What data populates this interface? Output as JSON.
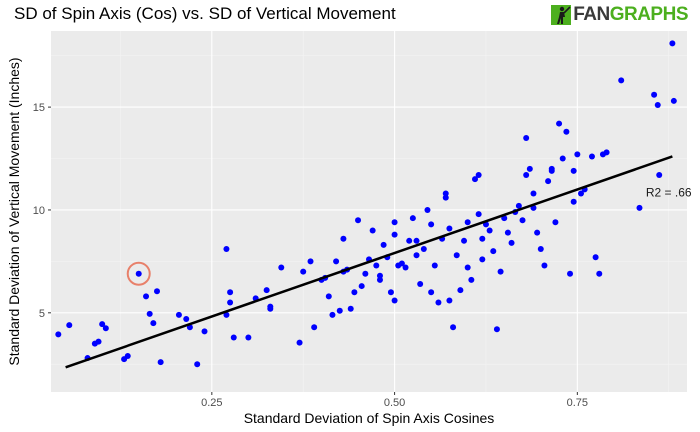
{
  "chart_data": {
    "type": "scatter",
    "title": "SD of Spin Axis (Cos) vs. SD of Vertical Movement",
    "xlabel": "Standard Deviation of Spin Axis Cosines",
    "ylabel": "Standard Deviation of Vertical Movement (Inches)",
    "xlim": [
      0.03,
      0.9
    ],
    "ylim": [
      1.15,
      18.7
    ],
    "x_ticks": [
      0.25,
      0.5,
      0.75
    ],
    "x_tick_labels": [
      "0.25",
      "0.50",
      "0.75"
    ],
    "y_ticks": [
      5,
      10,
      15
    ],
    "y_tick_labels": [
      "5",
      "10",
      "15"
    ],
    "grid": true,
    "point_color": "#0000ff",
    "line_color": "#000000",
    "highlight_color": "#e8806a",
    "fit_line": {
      "x": [
        0.05,
        0.88
      ],
      "y": [
        2.35,
        12.6
      ]
    },
    "annotation": {
      "text": "R2 = .66",
      "x": 0.875,
      "y": 10.85
    },
    "highlight": {
      "x": 0.15,
      "y": 6.9
    },
    "points": [
      {
        "x": 0.04,
        "y": 3.95
      },
      {
        "x": 0.055,
        "y": 4.4
      },
      {
        "x": 0.08,
        "y": 2.8
      },
      {
        "x": 0.09,
        "y": 3.5
      },
      {
        "x": 0.095,
        "y": 3.6
      },
      {
        "x": 0.1,
        "y": 4.45
      },
      {
        "x": 0.105,
        "y": 4.25
      },
      {
        "x": 0.13,
        "y": 2.75
      },
      {
        "x": 0.135,
        "y": 2.9
      },
      {
        "x": 0.15,
        "y": 6.9
      },
      {
        "x": 0.16,
        "y": 5.8
      },
      {
        "x": 0.165,
        "y": 4.95
      },
      {
        "x": 0.17,
        "y": 4.5
      },
      {
        "x": 0.175,
        "y": 6.05
      },
      {
        "x": 0.18,
        "y": 2.6
      },
      {
        "x": 0.205,
        "y": 4.9
      },
      {
        "x": 0.215,
        "y": 4.7
      },
      {
        "x": 0.22,
        "y": 4.3
      },
      {
        "x": 0.23,
        "y": 2.5
      },
      {
        "x": 0.24,
        "y": 4.1
      },
      {
        "x": 0.27,
        "y": 8.1
      },
      {
        "x": 0.275,
        "y": 5.5
      },
      {
        "x": 0.275,
        "y": 6.0
      },
      {
        "x": 0.27,
        "y": 4.9
      },
      {
        "x": 0.28,
        "y": 3.8
      },
      {
        "x": 0.3,
        "y": 3.8
      },
      {
        "x": 0.31,
        "y": 5.7
      },
      {
        "x": 0.325,
        "y": 6.1
      },
      {
        "x": 0.33,
        "y": 5.3
      },
      {
        "x": 0.33,
        "y": 5.2
      },
      {
        "x": 0.345,
        "y": 7.2
      },
      {
        "x": 0.37,
        "y": 3.55
      },
      {
        "x": 0.375,
        "y": 7.0
      },
      {
        "x": 0.385,
        "y": 7.5
      },
      {
        "x": 0.39,
        "y": 4.3
      },
      {
        "x": 0.4,
        "y": 6.6
      },
      {
        "x": 0.405,
        "y": 6.7
      },
      {
        "x": 0.41,
        "y": 5.8
      },
      {
        "x": 0.415,
        "y": 4.9
      },
      {
        "x": 0.42,
        "y": 7.5
      },
      {
        "x": 0.425,
        "y": 5.1
      },
      {
        "x": 0.43,
        "y": 8.6
      },
      {
        "x": 0.435,
        "y": 7.1
      },
      {
        "x": 0.44,
        "y": 5.2
      },
      {
        "x": 0.445,
        "y": 6.0
      },
      {
        "x": 0.45,
        "y": 9.5
      },
      {
        "x": 0.455,
        "y": 6.3
      },
      {
        "x": 0.46,
        "y": 6.9
      },
      {
        "x": 0.465,
        "y": 7.6
      },
      {
        "x": 0.47,
        "y": 9.0
      },
      {
        "x": 0.475,
        "y": 7.3
      },
      {
        "x": 0.48,
        "y": 6.6
      },
      {
        "x": 0.485,
        "y": 8.3
      },
      {
        "x": 0.49,
        "y": 7.7
      },
      {
        "x": 0.495,
        "y": 6.0
      },
      {
        "x": 0.5,
        "y": 9.4
      },
      {
        "x": 0.5,
        "y": 5.6
      },
      {
        "x": 0.505,
        "y": 7.3
      },
      {
        "x": 0.51,
        "y": 7.4
      },
      {
        "x": 0.515,
        "y": 7.2
      },
      {
        "x": 0.52,
        "y": 8.5
      },
      {
        "x": 0.525,
        "y": 9.6
      },
      {
        "x": 0.53,
        "y": 7.8
      },
      {
        "x": 0.535,
        "y": 6.4
      },
      {
        "x": 0.54,
        "y": 8.1
      },
      {
        "x": 0.545,
        "y": 10.0
      },
      {
        "x": 0.55,
        "y": 6.0
      },
      {
        "x": 0.555,
        "y": 7.3
      },
      {
        "x": 0.56,
        "y": 5.5
      },
      {
        "x": 0.565,
        "y": 8.6
      },
      {
        "x": 0.57,
        "y": 10.8
      },
      {
        "x": 0.575,
        "y": 9.1
      },
      {
        "x": 0.58,
        "y": 4.3
      },
      {
        "x": 0.585,
        "y": 7.8
      },
      {
        "x": 0.59,
        "y": 6.1
      },
      {
        "x": 0.595,
        "y": 8.5
      },
      {
        "x": 0.6,
        "y": 7.2
      },
      {
        "x": 0.605,
        "y": 6.6
      },
      {
        "x": 0.61,
        "y": 11.5
      },
      {
        "x": 0.615,
        "y": 9.8
      },
      {
        "x": 0.62,
        "y": 8.6
      },
      {
        "x": 0.625,
        "y": 9.3
      },
      {
        "x": 0.63,
        "y": 9.0
      },
      {
        "x": 0.635,
        "y": 8.0
      },
      {
        "x": 0.64,
        "y": 4.2
      },
      {
        "x": 0.645,
        "y": 7.0
      },
      {
        "x": 0.65,
        "y": 9.6
      },
      {
        "x": 0.655,
        "y": 8.9
      },
      {
        "x": 0.66,
        "y": 8.4
      },
      {
        "x": 0.665,
        "y": 9.9
      },
      {
        "x": 0.67,
        "y": 10.2
      },
      {
        "x": 0.675,
        "y": 9.5
      },
      {
        "x": 0.68,
        "y": 13.5
      },
      {
        "x": 0.685,
        "y": 12.0
      },
      {
        "x": 0.69,
        "y": 10.8
      },
      {
        "x": 0.695,
        "y": 8.9
      },
      {
        "x": 0.7,
        "y": 8.1
      },
      {
        "x": 0.705,
        "y": 7.3
      },
      {
        "x": 0.71,
        "y": 11.4
      },
      {
        "x": 0.715,
        "y": 11.9
      },
      {
        "x": 0.72,
        "y": 9.4
      },
      {
        "x": 0.725,
        "y": 14.2
      },
      {
        "x": 0.73,
        "y": 12.5
      },
      {
        "x": 0.735,
        "y": 13.8
      },
      {
        "x": 0.74,
        "y": 6.9
      },
      {
        "x": 0.745,
        "y": 10.4
      },
      {
        "x": 0.75,
        "y": 12.7
      },
      {
        "x": 0.755,
        "y": 10.8
      },
      {
        "x": 0.76,
        "y": 11.0
      },
      {
        "x": 0.77,
        "y": 12.6
      },
      {
        "x": 0.775,
        "y": 7.7
      },
      {
        "x": 0.78,
        "y": 6.9
      },
      {
        "x": 0.785,
        "y": 12.7
      },
      {
        "x": 0.79,
        "y": 12.8
      },
      {
        "x": 0.81,
        "y": 16.3
      },
      {
        "x": 0.835,
        "y": 10.1
      },
      {
        "x": 0.855,
        "y": 15.6
      },
      {
        "x": 0.86,
        "y": 15.1
      },
      {
        "x": 0.862,
        "y": 11.7
      },
      {
        "x": 0.88,
        "y": 18.1
      },
      {
        "x": 0.882,
        "y": 15.3
      },
      {
        "x": 0.615,
        "y": 11.7
      },
      {
        "x": 0.57,
        "y": 10.6
      },
      {
        "x": 0.55,
        "y": 9.3
      },
      {
        "x": 0.68,
        "y": 11.7
      },
      {
        "x": 0.69,
        "y": 10.1
      },
      {
        "x": 0.745,
        "y": 11.9
      },
      {
        "x": 0.6,
        "y": 9.4
      },
      {
        "x": 0.5,
        "y": 8.8
      },
      {
        "x": 0.53,
        "y": 8.5
      },
      {
        "x": 0.43,
        "y": 7.0
      },
      {
        "x": 0.48,
        "y": 6.8
      },
      {
        "x": 0.62,
        "y": 7.6
      },
      {
        "x": 0.575,
        "y": 5.6
      },
      {
        "x": 0.715,
        "y": 12.0
      }
    ]
  },
  "logo": {
    "fan": "FAN",
    "graphs": "GRAPHS"
  }
}
